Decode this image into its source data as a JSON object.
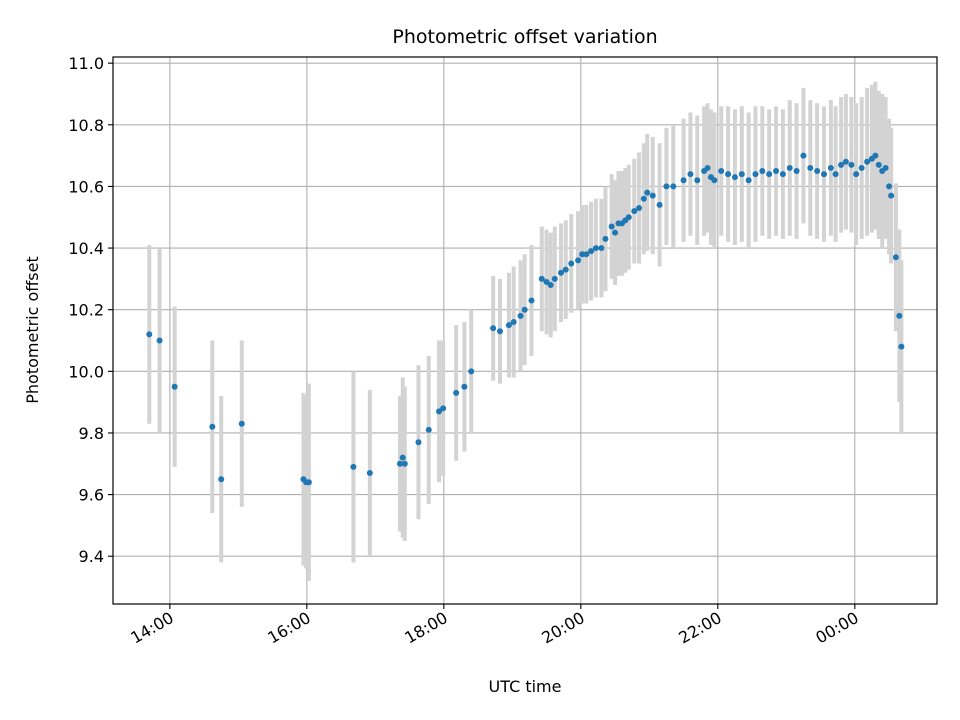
{
  "chart_data": {
    "type": "scatter",
    "title": "Photometric offset variation",
    "xlabel": "UTC time",
    "ylabel": "Photometric offset",
    "x_unit": "hours (UTC, continuing past midnight)",
    "xlim": [
      13.17,
      25.2
    ],
    "ylim": [
      9.245,
      11.02
    ],
    "x_ticks": [
      {
        "value": 14,
        "label": "14:00"
      },
      {
        "value": 16,
        "label": "16:00"
      },
      {
        "value": 18,
        "label": "18:00"
      },
      {
        "value": 20,
        "label": "20:00"
      },
      {
        "value": 22,
        "label": "22:00"
      },
      {
        "value": 24,
        "label": "00:00"
      }
    ],
    "y_ticks": [
      {
        "value": 9.4,
        "label": "9.4"
      },
      {
        "value": 9.6,
        "label": "9.6"
      },
      {
        "value": 9.8,
        "label": "9.8"
      },
      {
        "value": 10.0,
        "label": "10.0"
      },
      {
        "value": 10.2,
        "label": "10.2"
      },
      {
        "value": 10.4,
        "label": "10.4"
      },
      {
        "value": 10.6,
        "label": "10.6"
      },
      {
        "value": 10.8,
        "label": "10.8"
      },
      {
        "value": 11.0,
        "label": "11.0"
      }
    ],
    "grid": true,
    "colors": {
      "points": "#1f77b4",
      "errorbars": "#d3d3d3",
      "grid": "#b0b0b0"
    },
    "series": [
      {
        "points": [
          [
            13.7,
            10.12,
            0.29
          ],
          [
            13.85,
            10.1,
            0.3
          ],
          [
            14.07,
            9.95,
            0.26
          ],
          [
            14.62,
            9.82,
            0.28
          ],
          [
            14.75,
            9.65,
            0.27
          ],
          [
            15.05,
            9.83,
            0.27
          ],
          [
            15.95,
            9.65,
            0.28
          ],
          [
            15.99,
            9.64,
            0.28
          ],
          [
            16.03,
            9.64,
            0.32
          ],
          [
            16.68,
            9.69,
            0.31
          ],
          [
            16.92,
            9.67,
            0.27
          ],
          [
            17.36,
            9.7,
            0.22
          ],
          [
            17.4,
            9.72,
            0.26
          ],
          [
            17.43,
            9.7,
            0.25
          ],
          [
            17.63,
            9.77,
            0.25
          ],
          [
            17.78,
            9.81,
            0.24
          ],
          [
            17.93,
            9.87,
            0.23
          ],
          [
            17.99,
            9.88,
            0.22
          ],
          [
            18.18,
            9.93,
            0.22
          ],
          [
            18.3,
            9.95,
            0.21
          ],
          [
            18.4,
            10.0,
            0.2
          ],
          [
            18.72,
            10.14,
            0.17
          ],
          [
            18.82,
            10.13,
            0.17
          ],
          [
            18.95,
            10.15,
            0.17
          ],
          [
            19.02,
            10.16,
            0.18
          ],
          [
            19.12,
            10.18,
            0.18
          ],
          [
            19.18,
            10.2,
            0.18
          ],
          [
            19.28,
            10.23,
            0.18
          ],
          [
            19.43,
            10.3,
            0.17
          ],
          [
            19.5,
            10.29,
            0.17
          ],
          [
            19.56,
            10.28,
            0.17
          ],
          [
            19.62,
            10.3,
            0.17
          ],
          [
            19.71,
            10.32,
            0.16
          ],
          [
            19.78,
            10.33,
            0.16
          ],
          [
            19.86,
            10.35,
            0.16
          ],
          [
            19.96,
            10.36,
            0.16
          ],
          [
            20.02,
            10.38,
            0.16
          ],
          [
            20.08,
            10.38,
            0.16
          ],
          [
            20.15,
            10.39,
            0.16
          ],
          [
            20.22,
            10.4,
            0.16
          ],
          [
            20.3,
            10.4,
            0.16
          ],
          [
            20.36,
            10.43,
            0.17
          ],
          [
            20.45,
            10.47,
            0.17
          ],
          [
            20.5,
            10.45,
            0.17
          ],
          [
            20.55,
            10.48,
            0.17
          ],
          [
            20.6,
            10.48,
            0.17
          ],
          [
            20.65,
            10.49,
            0.17
          ],
          [
            20.7,
            10.5,
            0.17
          ],
          [
            20.78,
            10.52,
            0.17
          ],
          [
            20.85,
            10.53,
            0.18
          ],
          [
            20.92,
            10.56,
            0.18
          ],
          [
            20.97,
            10.58,
            0.19
          ],
          [
            21.05,
            10.57,
            0.19
          ],
          [
            21.15,
            10.54,
            0.2
          ],
          [
            21.25,
            10.6,
            0.19
          ],
          [
            21.35,
            10.6,
            0.2
          ],
          [
            21.5,
            10.62,
            0.2
          ],
          [
            21.6,
            10.64,
            0.2
          ],
          [
            21.7,
            10.62,
            0.21
          ],
          [
            21.8,
            10.65,
            0.21
          ],
          [
            21.85,
            10.66,
            0.21
          ],
          [
            21.9,
            10.63,
            0.22
          ],
          [
            21.95,
            10.62,
            0.22
          ],
          [
            22.05,
            10.65,
            0.21
          ],
          [
            22.15,
            10.64,
            0.22
          ],
          [
            22.25,
            10.63,
            0.22
          ],
          [
            22.35,
            10.64,
            0.22
          ],
          [
            22.45,
            10.62,
            0.22
          ],
          [
            22.55,
            10.64,
            0.22
          ],
          [
            22.65,
            10.65,
            0.21
          ],
          [
            22.75,
            10.64,
            0.21
          ],
          [
            22.85,
            10.65,
            0.21
          ],
          [
            22.95,
            10.64,
            0.21
          ],
          [
            23.05,
            10.66,
            0.22
          ],
          [
            23.15,
            10.65,
            0.22
          ],
          [
            23.25,
            10.7,
            0.22
          ],
          [
            23.35,
            10.66,
            0.22
          ],
          [
            23.45,
            10.65,
            0.22
          ],
          [
            23.55,
            10.64,
            0.22
          ],
          [
            23.65,
            10.66,
            0.22
          ],
          [
            23.72,
            10.64,
            0.22
          ],
          [
            23.8,
            10.67,
            0.22
          ],
          [
            23.87,
            10.68,
            0.22
          ],
          [
            23.95,
            10.67,
            0.22
          ],
          [
            24.02,
            10.64,
            0.23
          ],
          [
            24.1,
            10.66,
            0.23
          ],
          [
            24.18,
            10.68,
            0.24
          ],
          [
            24.25,
            10.69,
            0.24
          ],
          [
            24.3,
            10.7,
            0.24
          ],
          [
            24.35,
            10.67,
            0.24
          ],
          [
            24.4,
            10.65,
            0.25
          ],
          [
            24.45,
            10.66,
            0.23
          ],
          [
            24.5,
            10.6,
            0.22
          ],
          [
            24.53,
            10.57,
            0.22
          ],
          [
            24.6,
            10.37,
            0.24
          ],
          [
            24.65,
            10.18,
            0.28
          ],
          [
            24.68,
            10.08,
            0.28
          ]
        ]
      }
    ]
  }
}
